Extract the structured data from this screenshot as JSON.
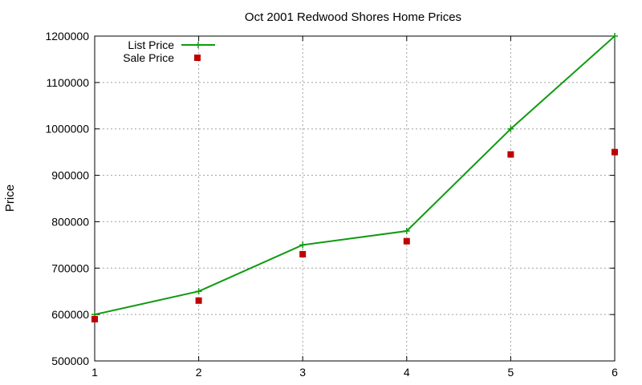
{
  "chart_data": {
    "type": "line",
    "title": "Oct 2001 Redwood Shores Home Prices",
    "xlabel": "",
    "ylabel": "Price",
    "xlim": [
      1,
      6
    ],
    "ylim": [
      500000,
      1200000
    ],
    "x_ticks": [
      1,
      2,
      3,
      4,
      5,
      6
    ],
    "y_ticks": [
      500000,
      600000,
      700000,
      800000,
      900000,
      1000000,
      1100000,
      1200000
    ],
    "grid": true,
    "legend_position": "top-left",
    "series": [
      {
        "name": "List Price",
        "style": "line-points",
        "marker": "plus",
        "color": "#109a10",
        "x": [
          1,
          2,
          3,
          4,
          5,
          6
        ],
        "y": [
          600000,
          650000,
          750000,
          780000,
          1000000,
          1200000
        ]
      },
      {
        "name": "Sale Price",
        "style": "points",
        "marker": "square",
        "color": "#c00000",
        "x": [
          1,
          2,
          3,
          4,
          5,
          6
        ],
        "y": [
          590000,
          630000,
          730000,
          758000,
          945000,
          950000
        ]
      }
    ]
  }
}
